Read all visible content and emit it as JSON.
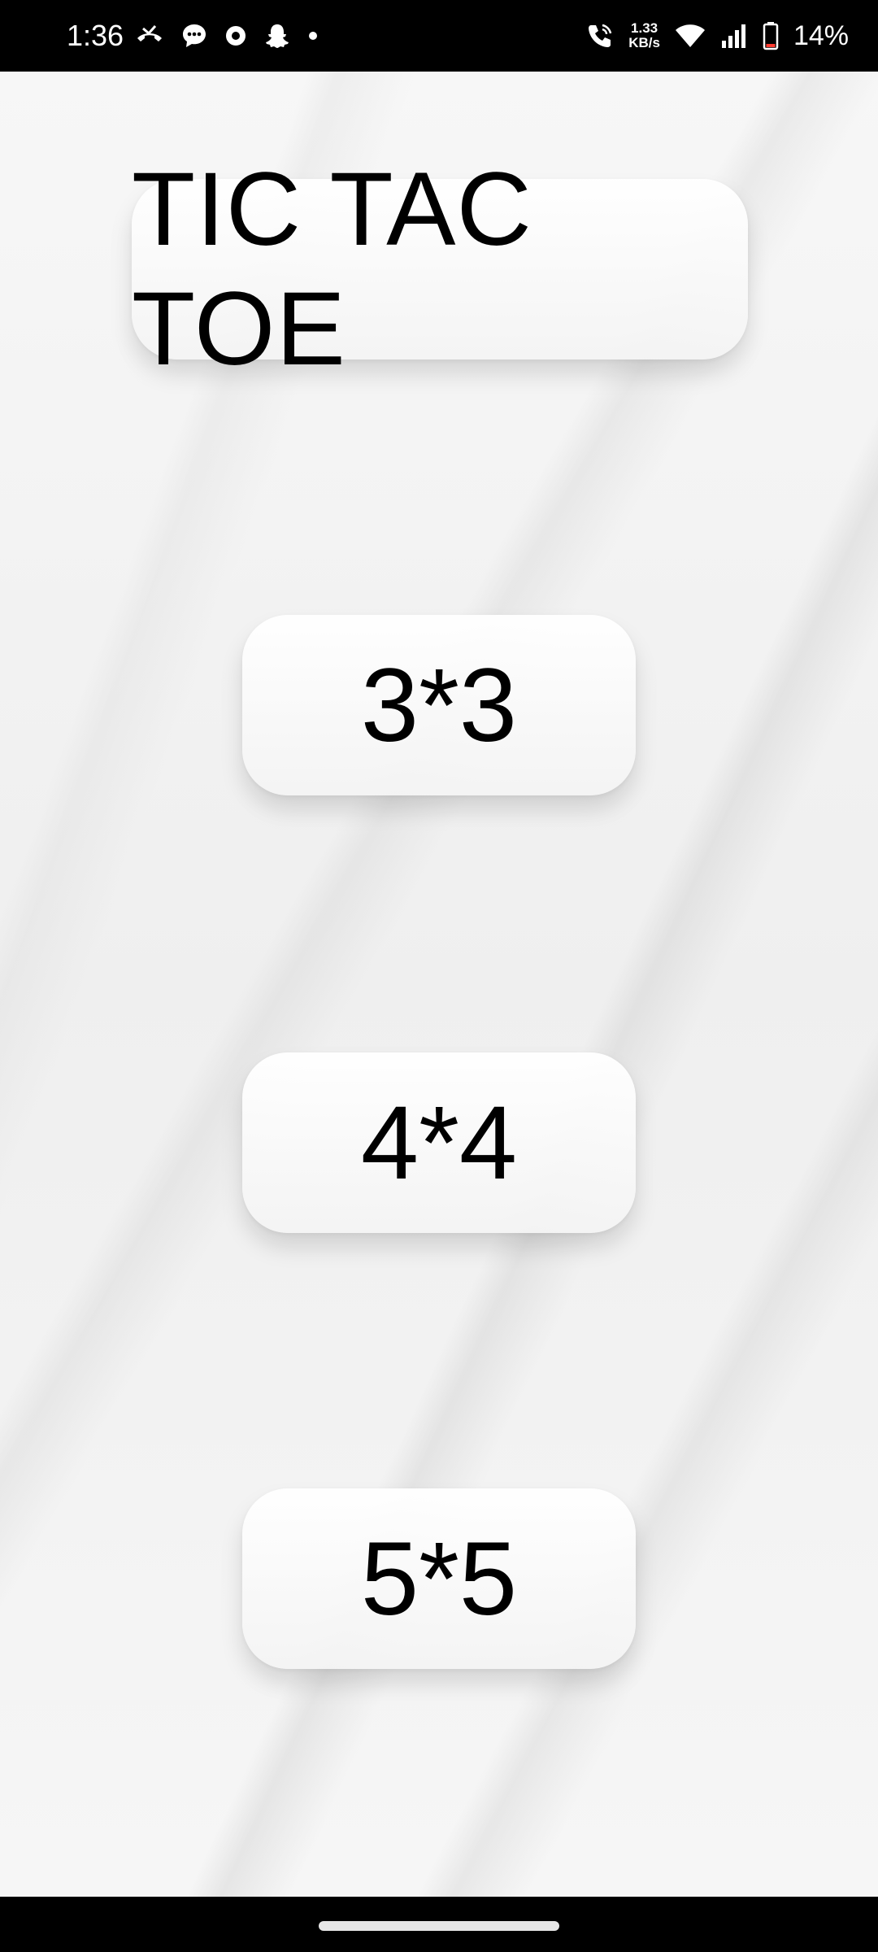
{
  "status_bar": {
    "time": "1:36",
    "left_icons": [
      "missed-call-icon",
      "messages-icon",
      "app-notification-icon",
      "snapchat-icon",
      "more-dot-icon"
    ],
    "right_icons": [
      "wifi-calling-icon",
      "wifi-icon",
      "signal-icon",
      "battery-icon"
    ],
    "net_speed_value": "1.33",
    "net_speed_unit": "KB/s",
    "battery_percent": "14%",
    "battery_color": "#ff3b30"
  },
  "app": {
    "title": "TIC TAC TOE",
    "buttons": {
      "size_3": "3*3",
      "size_4": "4*4",
      "size_5": "5*5"
    }
  },
  "nav_bar": {
    "indicator": "home-indicator"
  }
}
